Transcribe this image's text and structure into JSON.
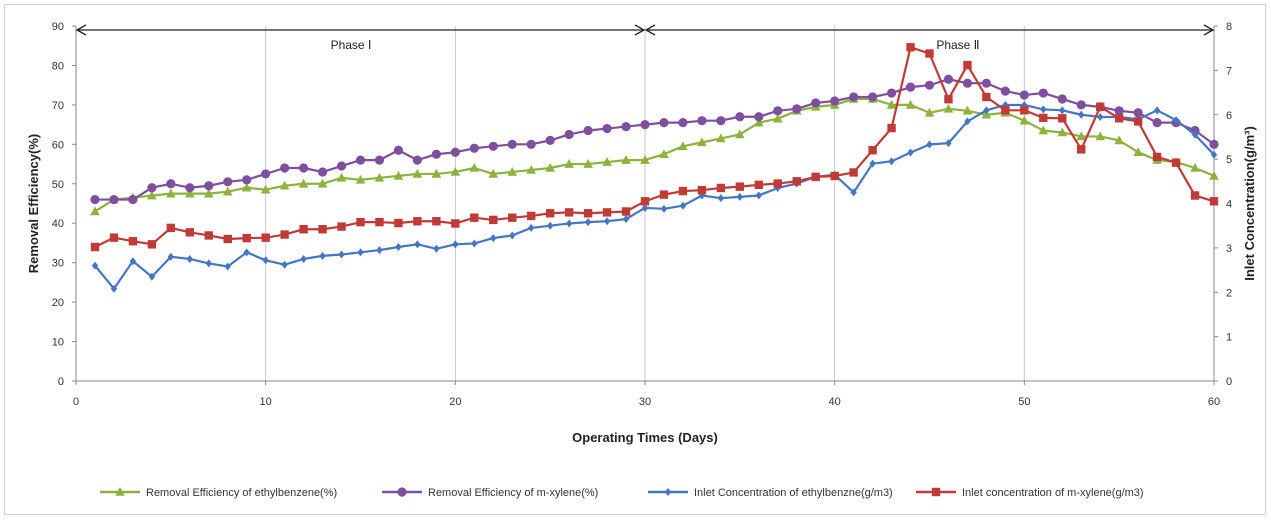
{
  "chart_data": {
    "type": "line",
    "xlabel": "Operating Times (Days)",
    "ylabel": "Removal Efficiency(%)",
    "y2label": "Inlet Concentration(g/m³)",
    "xlim": [
      0,
      60
    ],
    "ylim": [
      0,
      90
    ],
    "y2lim": [
      0,
      8
    ],
    "xticks": [
      "0",
      "10",
      "20",
      "30",
      "40",
      "50",
      "60"
    ],
    "yticks": [
      "0",
      "10",
      "20",
      "30",
      "40",
      "50",
      "60",
      "70",
      "80",
      "90"
    ],
    "y2ticks": [
      "0",
      "1",
      "2",
      "3",
      "4",
      "5",
      "6",
      "7",
      "8"
    ],
    "grid": "vertical",
    "legend_position": "bottom",
    "phases": [
      {
        "label": "Phase Ⅰ",
        "start": 0,
        "end": 30
      },
      {
        "label": "Phase Ⅱ",
        "start": 30,
        "end": 60
      }
    ],
    "x": [
      1,
      2,
      3,
      4,
      5,
      6,
      7,
      8,
      9,
      10,
      11,
      12,
      13,
      14,
      15,
      16,
      17,
      18,
      19,
      20,
      21,
      22,
      23,
      24,
      25,
      26,
      27,
      28,
      29,
      30,
      31,
      32,
      33,
      34,
      35,
      36,
      37,
      38,
      39,
      40,
      41,
      42,
      43,
      44,
      45,
      46,
      47,
      48,
      49,
      50,
      51,
      52,
      53,
      54,
      55,
      56,
      57,
      58,
      59,
      60
    ],
    "series": [
      {
        "name": "Removal Efficiency of ethylbenzene(%)",
        "axis": "left",
        "color": "#8DB33E",
        "marker": "triangle",
        "values": [
          43,
          46,
          46.5,
          47,
          47.5,
          47.5,
          47.5,
          48,
          49,
          48.5,
          49.5,
          50,
          50,
          51.5,
          51,
          51.5,
          52,
          52.5,
          52.5,
          53,
          54,
          52.5,
          53,
          53.5,
          54,
          55,
          55,
          55.5,
          56,
          56,
          57.5,
          59.5,
          60.5,
          61.5,
          62.5,
          65.5,
          66.5,
          68.5,
          69.5,
          70,
          71.5,
          71.5,
          70,
          70,
          68,
          69,
          68.5,
          67.5,
          68,
          66,
          63.5,
          63,
          62,
          62,
          61,
          58,
          56,
          55.5,
          54,
          52
        ]
      },
      {
        "name": "Removal Efficiency of m-xylene(%)",
        "axis": "left",
        "color": "#7E4F9F",
        "marker": "circle",
        "values": [
          46,
          46,
          46,
          49,
          50,
          49,
          49.5,
          50.5,
          51,
          52.5,
          54,
          54,
          53,
          54.5,
          56,
          56,
          58.5,
          56,
          57.5,
          58,
          59,
          59.5,
          60,
          60,
          61,
          62.5,
          63.5,
          64,
          64.5,
          65,
          65.5,
          65.5,
          66,
          66,
          67,
          67,
          68.5,
          69,
          70.5,
          71,
          72,
          72,
          73,
          74.5,
          75,
          76.5,
          75.5,
          75.5,
          73.5,
          72.5,
          73,
          71.5,
          70,
          69.5,
          68.5,
          68,
          65.5,
          65.5,
          63.5,
          60
        ]
      },
      {
        "name": "Inlet Concentration  of ethylbenzne(g/m3)",
        "axis": "right",
        "color": "#4477C1",
        "marker": "diamond",
        "values": [
          2.6,
          2.08,
          2.7,
          2.35,
          2.8,
          2.75,
          2.65,
          2.58,
          2.9,
          2.72,
          2.62,
          2.75,
          2.82,
          2.85,
          2.9,
          2.95,
          3.02,
          3.08,
          2.98,
          3.08,
          3.1,
          3.22,
          3.28,
          3.45,
          3.5,
          3.55,
          3.58,
          3.6,
          3.65,
          3.9,
          3.88,
          3.95,
          4.18,
          4.12,
          4.15,
          4.18,
          4.35,
          4.45,
          4.6,
          4.65,
          4.25,
          4.9,
          4.95,
          5.15,
          5.33,
          5.36,
          5.85,
          6.1,
          6.22,
          6.22,
          6.12,
          6.1,
          6,
          5.95,
          5.95,
          5.9,
          6.1,
          5.88,
          5.55,
          5.1
        ]
      },
      {
        "name": "Inlet concentration of m-xylene(g/m3)",
        "axis": "right",
        "color": "#C03A38",
        "marker": "square",
        "values": [
          3.02,
          3.23,
          3.15,
          3.08,
          3.45,
          3.35,
          3.28,
          3.2,
          3.22,
          3.23,
          3.3,
          3.42,
          3.42,
          3.48,
          3.58,
          3.58,
          3.56,
          3.6,
          3.6,
          3.55,
          3.68,
          3.63,
          3.68,
          3.72,
          3.78,
          3.8,
          3.78,
          3.8,
          3.82,
          4.05,
          4.2,
          4.28,
          4.3,
          4.35,
          4.38,
          4.42,
          4.45,
          4.5,
          4.6,
          4.62,
          4.7,
          5.2,
          5.7,
          7.52,
          7.38,
          6.35,
          7.12,
          6.4,
          6.1,
          6.1,
          5.93,
          5.92,
          5.22,
          6.18,
          5.92,
          5.85,
          5.05,
          4.92,
          4.18,
          4.05
        ]
      }
    ]
  }
}
